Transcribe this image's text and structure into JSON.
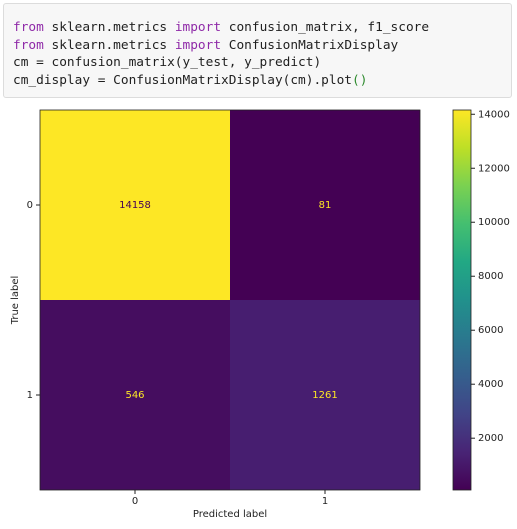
{
  "code": {
    "lines": [
      [
        "from",
        " sklearn.metrics ",
        "import",
        " confusion_matrix, f1_score"
      ],
      [
        "from",
        " sklearn.metrics ",
        "import",
        " ConfusionMatrixDisplay"
      ],
      [
        "cm = confusion_matrix(y_test, y_predict)"
      ],
      [
        "cm_display = ConfusionMatrixDisplay(cm).plot",
        "()"
      ]
    ]
  },
  "chart_data": {
    "type": "heatmap",
    "xlabel": "Predicted label",
    "ylabel": "True label",
    "x_categories": [
      "0",
      "1"
    ],
    "y_categories": [
      "0",
      "1"
    ],
    "values": [
      [
        14158,
        81
      ],
      [
        546,
        1261
      ]
    ],
    "colormap": "viridis",
    "colorbar_lim": [
      81,
      14158
    ],
    "colorbar_ticks": [
      2000,
      4000,
      6000,
      8000,
      10000,
      12000,
      14000
    ]
  }
}
